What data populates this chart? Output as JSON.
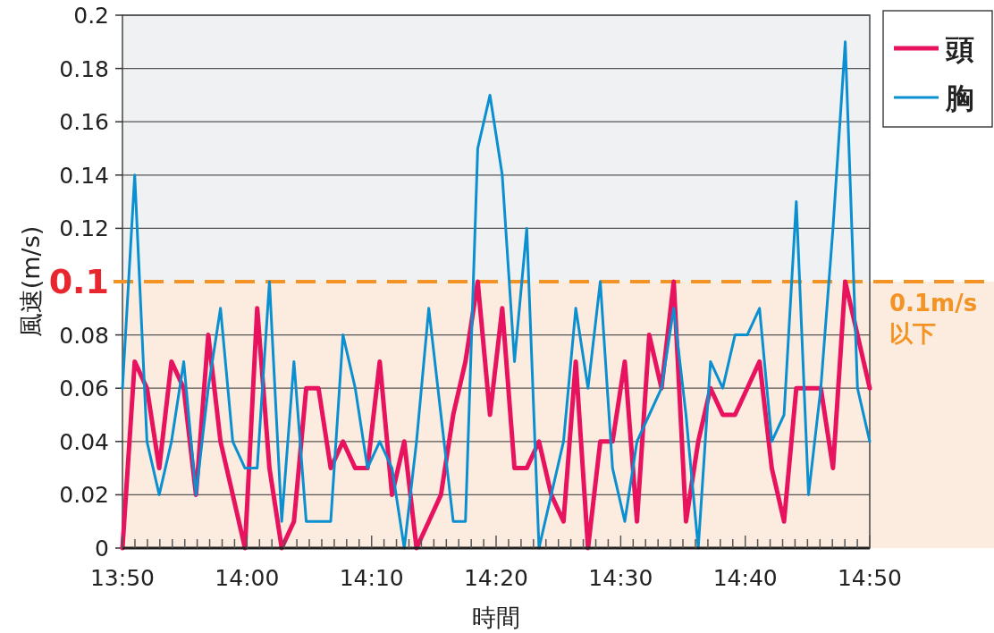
{
  "chart_data": {
    "type": "line",
    "xlabel": "時間",
    "ylabel": "風速(m/s)",
    "x": [
      13.8333,
      13.8497,
      13.8661,
      13.8825,
      13.8989,
      13.9153,
      13.9317,
      13.9481,
      13.9645,
      13.9809,
      13.9972,
      14.0136,
      14.03,
      14.0464,
      14.0628,
      14.0792,
      14.0956,
      14.112,
      14.1284,
      14.1448,
      14.1612,
      14.1776,
      14.194,
      14.2104,
      14.2268,
      14.2432,
      14.2595,
      14.2759,
      14.2923,
      14.3087,
      14.3251,
      14.3415,
      14.3579,
      14.3743,
      14.3907,
      14.4071,
      14.4235,
      14.4399,
      14.4563,
      14.4727,
      14.4891,
      14.5055,
      14.5218,
      14.5382,
      14.5546,
      14.571,
      14.5874,
      14.6038,
      14.6202,
      14.6366,
      14.653,
      14.6694,
      14.6858,
      14.7022,
      14.7186,
      14.735,
      14.7514,
      14.7678,
      14.7841,
      14.8005,
      14.8169,
      14.8333
    ],
    "series": [
      {
        "name": "頭",
        "color": "#e8135f",
        "values": [
          0,
          0.07,
          0.06,
          0.03,
          0.07,
          0.06,
          0.02,
          0.08,
          0.04,
          0.02,
          0,
          0.09,
          0.03,
          0,
          0.01,
          0.06,
          0.06,
          0.03,
          0.04,
          0.03,
          0.03,
          0.07,
          0.02,
          0.04,
          0,
          0.01,
          0.02,
          0.05,
          0.07,
          0.1,
          0.05,
          0.09,
          0.03,
          0.03,
          0.04,
          0.02,
          0.01,
          0.07,
          0,
          0.04,
          0.04,
          0.07,
          0.01,
          0.08,
          0.06,
          0.1,
          0.01,
          0.04,
          0.06,
          0.05,
          0.05,
          0.06,
          0.07,
          0.03,
          0.01,
          0.06,
          0.06,
          0.06,
          0.03,
          0.1,
          0.08,
          0.06
        ]
      },
      {
        "name": "胸",
        "color": "#0a8fd0",
        "values": [
          0.06,
          0.14,
          0.04,
          0.02,
          0.04,
          0.07,
          0.02,
          0.06,
          0.09,
          0.04,
          0.03,
          0.03,
          0.1,
          0.01,
          0.07,
          0.01,
          0.01,
          0.01,
          0.08,
          0.06,
          0.03,
          0.04,
          0.03,
          0,
          0.04,
          0.09,
          0.05,
          0.01,
          0.01,
          0.15,
          0.17,
          0.14,
          0.07,
          0.12,
          0,
          0.02,
          0.04,
          0.09,
          0.06,
          0.1,
          0.03,
          0.01,
          0.04,
          0.05,
          0.06,
          0.09,
          0.05,
          0,
          0.07,
          0.06,
          0.08,
          0.08,
          0.09,
          0.04,
          0.05,
          0.13,
          0.02,
          0.06,
          0.12,
          0.19,
          0.06,
          0.04
        ]
      }
    ],
    "xlim": [
      13.8333,
      14.8333
    ],
    "xticks": [
      {
        "value": 13.8333,
        "label": "13:50"
      },
      {
        "value": 13.85,
        "label": null
      },
      {
        "value": 13.8667,
        "label": null
      },
      {
        "value": 13.8833,
        "label": null
      },
      {
        "value": 13.9,
        "label": null
      },
      {
        "value": 13.9167,
        "label": null
      },
      {
        "value": 13.9333,
        "label": null
      },
      {
        "value": 13.95,
        "label": null
      },
      {
        "value": 13.9667,
        "label": null
      },
      {
        "value": 13.9833,
        "label": null
      },
      {
        "value": 14,
        "label": "14:00"
      },
      {
        "value": 14.0167,
        "label": null
      },
      {
        "value": 14.0333,
        "label": null
      },
      {
        "value": 14.05,
        "label": null
      },
      {
        "value": 14.0667,
        "label": null
      },
      {
        "value": 14.0833,
        "label": null
      },
      {
        "value": 14.1,
        "label": null
      },
      {
        "value": 14.1167,
        "label": null
      },
      {
        "value": 14.1333,
        "label": null
      },
      {
        "value": 14.15,
        "label": null
      },
      {
        "value": 14.1667,
        "label": "14:10"
      },
      {
        "value": 14.1833,
        "label": null
      },
      {
        "value": 14.2,
        "label": null
      },
      {
        "value": 14.2167,
        "label": null
      },
      {
        "value": 14.2333,
        "label": null
      },
      {
        "value": 14.25,
        "label": null
      },
      {
        "value": 14.2667,
        "label": null
      },
      {
        "value": 14.2833,
        "label": null
      },
      {
        "value": 14.3,
        "label": null
      },
      {
        "value": 14.3167,
        "label": null
      },
      {
        "value": 14.3333,
        "label": "14:20"
      },
      {
        "value": 14.35,
        "label": null
      },
      {
        "value": 14.3667,
        "label": null
      },
      {
        "value": 14.3833,
        "label": null
      },
      {
        "value": 14.4,
        "label": null
      },
      {
        "value": 14.4167,
        "label": null
      },
      {
        "value": 14.4333,
        "label": null
      },
      {
        "value": 14.45,
        "label": null
      },
      {
        "value": 14.4667,
        "label": null
      },
      {
        "value": 14.4833,
        "label": null
      },
      {
        "value": 14.5,
        "label": "14:30"
      },
      {
        "value": 14.5167,
        "label": null
      },
      {
        "value": 14.5333,
        "label": null
      },
      {
        "value": 14.55,
        "label": null
      },
      {
        "value": 14.5667,
        "label": null
      },
      {
        "value": 14.5833,
        "label": null
      },
      {
        "value": 14.6,
        "label": null
      },
      {
        "value": 14.6167,
        "label": null
      },
      {
        "value": 14.6333,
        "label": null
      },
      {
        "value": 14.65,
        "label": null
      },
      {
        "value": 14.6667,
        "label": "14:40"
      },
      {
        "value": 14.6833,
        "label": null
      },
      {
        "value": 14.7,
        "label": null
      },
      {
        "value": 14.7167,
        "label": null
      },
      {
        "value": 14.7333,
        "label": null
      },
      {
        "value": 14.75,
        "label": null
      },
      {
        "value": 14.7667,
        "label": null
      },
      {
        "value": 14.7833,
        "label": null
      },
      {
        "value": 14.8,
        "label": null
      },
      {
        "value": 14.8167,
        "label": null
      },
      {
        "value": 14.8333,
        "label": "14:50"
      }
    ],
    "ylim": [
      0,
      0.2
    ],
    "yticks": [
      0,
      0.02,
      0.04,
      0.06,
      0.08,
      0.12,
      0.14,
      0.16,
      0.18,
      0.2
    ],
    "ref_lines": [
      {
        "axis": "y",
        "value": 0.1,
        "label": "0.1",
        "color": "#f39323",
        "line_style": "dashed"
      }
    ],
    "bands": [
      {
        "axis": "y",
        "from": 0,
        "to": 0.1,
        "label": "0.1m/s以下",
        "color": "#fcecdf"
      }
    ],
    "grid": "y",
    "legend": "top right",
    "marker": "none",
    "line_style": "solid"
  }
}
